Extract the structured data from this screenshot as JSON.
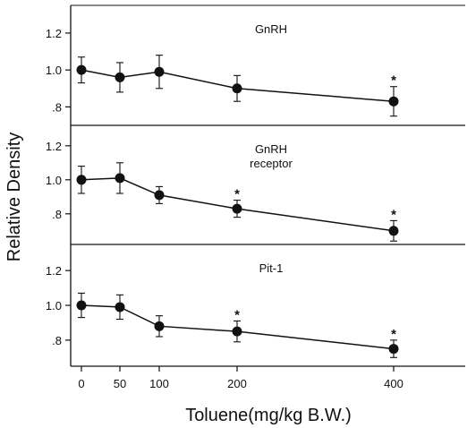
{
  "chart_data": {
    "type": "line",
    "xlabel": "Toluene(mg/kg B.W.)",
    "ylabel": "Relative Density",
    "x_ticks": [
      "0",
      "50",
      "100",
      "200",
      "400"
    ],
    "x": [
      0,
      50,
      100,
      200,
      400
    ],
    "panels": [
      {
        "name": "GnRH",
        "ylim": [
          0.7,
          1.35
        ],
        "y_ticks": [
          "1.2",
          "1.0",
          ".8"
        ],
        "values": [
          1.0,
          0.96,
          0.99,
          0.9,
          0.83
        ],
        "errors": [
          0.07,
          0.08,
          0.09,
          0.07,
          0.08
        ],
        "significant": [
          false,
          false,
          false,
          false,
          true
        ]
      },
      {
        "name": "GnRH receptor",
        "name_lines": [
          "GnRH",
          "receptor"
        ],
        "ylim": [
          0.62,
          1.32
        ],
        "y_ticks": [
          "1.2",
          "1.0",
          ".8"
        ],
        "values": [
          1.0,
          1.01,
          0.91,
          0.83,
          0.7
        ],
        "errors": [
          0.08,
          0.09,
          0.05,
          0.05,
          0.06
        ],
        "significant": [
          false,
          false,
          false,
          true,
          true
        ]
      },
      {
        "name": "Pit-1",
        "ylim": [
          0.65,
          1.35
        ],
        "y_ticks": [
          "1.2",
          "1.0",
          ".8"
        ],
        "values": [
          1.0,
          0.99,
          0.88,
          0.85,
          0.75
        ],
        "errors": [
          0.07,
          0.07,
          0.06,
          0.06,
          0.05
        ],
        "significant": [
          false,
          false,
          false,
          true,
          true
        ]
      }
    ],
    "significance_marker": "*",
    "colors": {
      "line": "#111111",
      "marker": "#111111",
      "background": "#ffffff"
    }
  }
}
